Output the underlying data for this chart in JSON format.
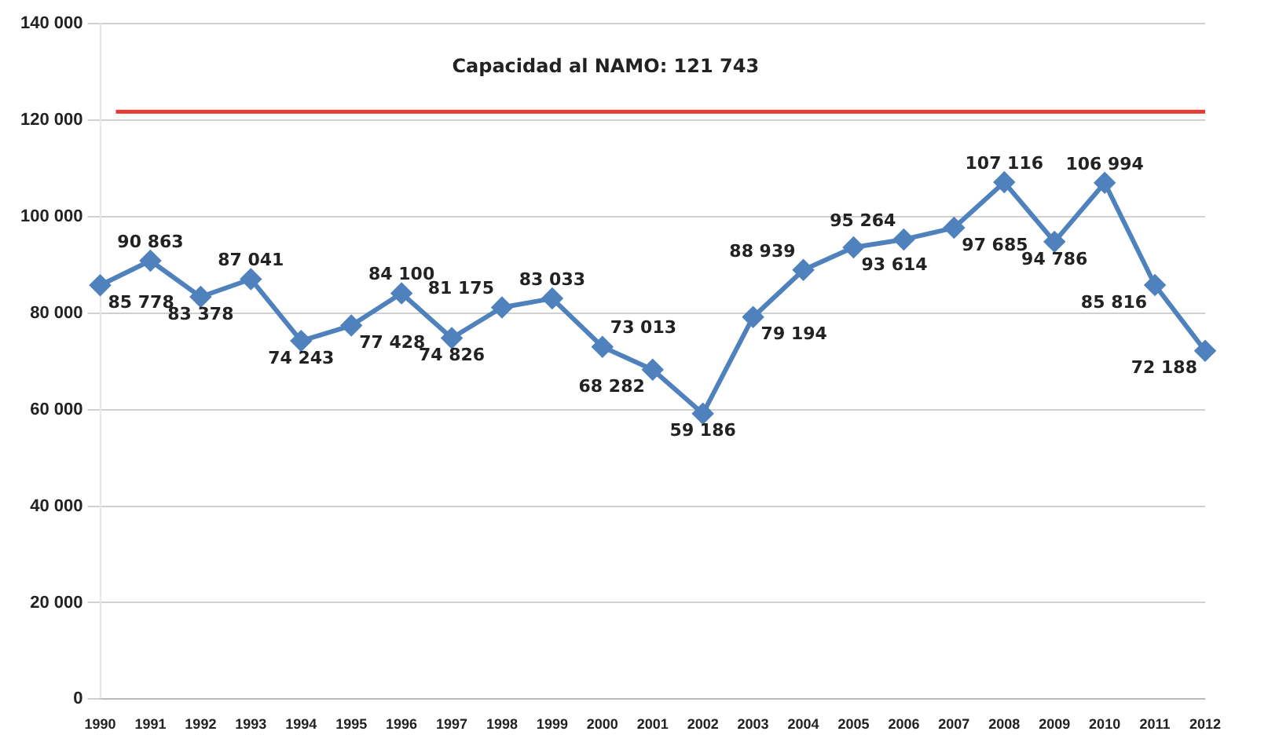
{
  "chart_data": {
    "type": "line",
    "categories": [
      "1990",
      "1991",
      "1992",
      "1993",
      "1994",
      "1995",
      "1996",
      "1997",
      "1998",
      "1999",
      "2000",
      "2001",
      "2002",
      "2003",
      "2004",
      "2005",
      "2006",
      "2007",
      "2008",
      "2009",
      "2010",
      "2011",
      "2012"
    ],
    "series": [
      {
        "color": "#4f81bd",
        "values": [
          85778,
          90863,
          83378,
          87041,
          74243,
          77428,
          84100,
          74826,
          81175,
          83033,
          73013,
          68282,
          59186,
          79194,
          88939,
          93614,
          95264,
          97685,
          107116,
          94786,
          106994,
          85816,
          72188
        ],
        "value_labels": [
          "85 778",
          "90 863",
          "83 378",
          "87 041",
          "74 243",
          "77 428",
          "84 100",
          "74 826",
          "81 175",
          "83 033",
          "73 013",
          "68 282",
          "59 186",
          "79 194",
          "88 939",
          "93 614",
          "95 264",
          "97 685",
          "107 116",
          "94 786",
          "106 994",
          "85 816",
          "72 188"
        ]
      }
    ],
    "ylim": [
      0,
      140000
    ],
    "yticks": [
      {
        "value": 0,
        "label": "0"
      },
      {
        "value": 20000,
        "label": "20 000"
      },
      {
        "value": 40000,
        "label": "40 000"
      },
      {
        "value": 60000,
        "label": "60 000"
      },
      {
        "value": 80000,
        "label": "80 000"
      },
      {
        "value": 100000,
        "label": "100 000"
      },
      {
        "value": 120000,
        "label": "120 000"
      },
      {
        "value": 140000,
        "label": "140 000"
      }
    ],
    "ref_lines": [
      {
        "axis": "y",
        "value": 121743,
        "label": "Capacidad al NAMO: 121 743",
        "color": "#e03c31"
      }
    ],
    "grid": "y",
    "legend": false,
    "marker": "diamond",
    "line_style": "solid"
  }
}
